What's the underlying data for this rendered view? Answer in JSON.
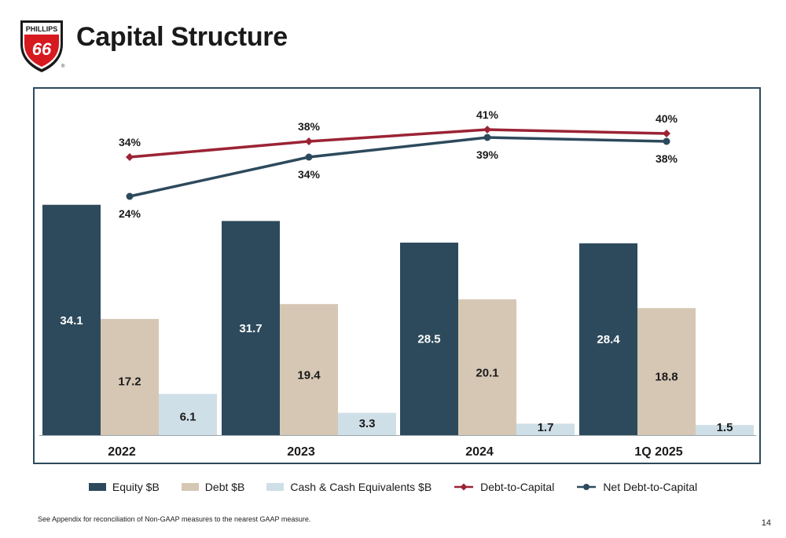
{
  "header": {
    "title": "Capital Structure",
    "logo_text_top": "PHILLIPS",
    "logo_text_num": "66",
    "logo_reg": "®"
  },
  "colors": {
    "equity": "#2d4a5c",
    "debt": "#d6c7b5",
    "cash": "#cfdfe8",
    "debt_to_capital": "#9b2335",
    "net_debt_to_capital": "#2d4a5c",
    "logo_red": "#d71920"
  },
  "chart_data": {
    "type": "bar",
    "categories": [
      "2022",
      "2023",
      "2024",
      "1Q 2025"
    ],
    "series": [
      {
        "name": "Equity $B",
        "type": "bar",
        "values": [
          34.1,
          31.7,
          28.5,
          28.4
        ],
        "labels": [
          "34.1",
          "31.7",
          "28.5",
          "28.4"
        ]
      },
      {
        "name": "Debt $B",
        "type": "bar",
        "values": [
          17.2,
          19.4,
          20.1,
          18.8
        ],
        "labels": [
          "17.2",
          "19.4",
          "20.1",
          "18.8"
        ]
      },
      {
        "name": "Cash & Cash Equivalents $B",
        "type": "bar",
        "values": [
          6.1,
          3.3,
          1.7,
          1.5
        ],
        "labels": [
          "6.1",
          "3.3",
          "1.7",
          "1.5"
        ]
      },
      {
        "name": "Debt-to-Capital",
        "type": "line",
        "values": [
          34,
          38,
          41,
          40
        ],
        "labels": [
          "34%",
          "38%",
          "41%",
          "40%"
        ]
      },
      {
        "name": "Net Debt-to-Capital",
        "type": "line",
        "values": [
          24,
          34,
          39,
          38
        ],
        "labels": [
          "24%",
          "34%",
          "39%",
          "38%"
        ]
      }
    ],
    "legend_position": "bottom"
  },
  "footer": {
    "note": "See Appendix for reconciliation of Non-GAAP measures to the nearest GAAP measure.",
    "page": "14"
  }
}
